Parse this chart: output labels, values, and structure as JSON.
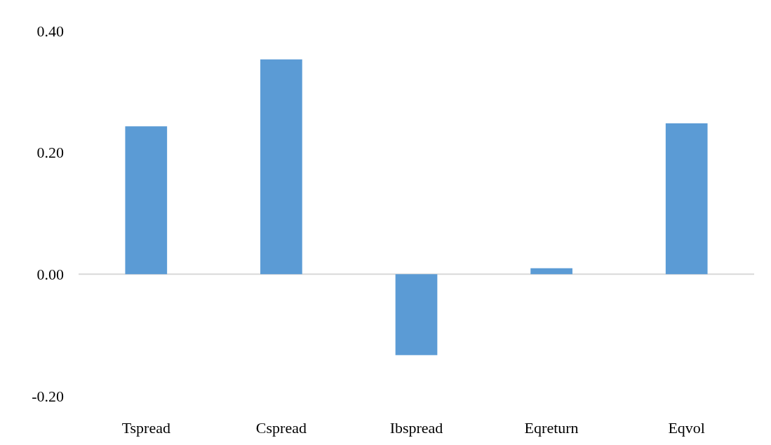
{
  "chart_data": {
    "type": "bar",
    "categories": [
      "Tspread",
      "Cspread",
      "Ibspread",
      "Eqreturn",
      "Eqvol"
    ],
    "values": [
      0.243,
      0.353,
      -0.133,
      0.01,
      0.248
    ],
    "color": "#5b9bd5",
    "ylim": [
      -0.2,
      0.4
    ],
    "yticks": [
      {
        "value": -0.2,
        "label": "-0.20"
      },
      {
        "value": 0,
        "label": "0.00"
      },
      {
        "value": 0.2,
        "label": "0.20"
      },
      {
        "value": 0.4,
        "label": "0.40"
      }
    ],
    "ref_lines": [
      {
        "axis": "y",
        "value": 0,
        "color": "#d9d9d9"
      }
    ],
    "grid": false
  }
}
